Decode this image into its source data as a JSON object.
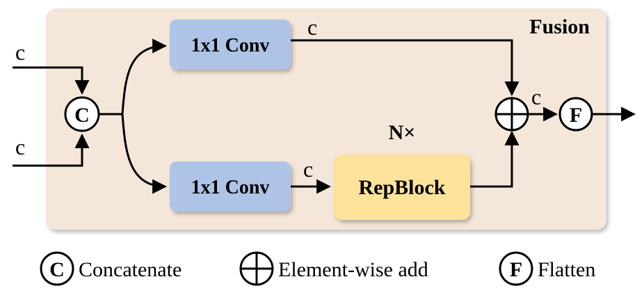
{
  "panel": {
    "title": "Fusion",
    "fill": "#f4e6d9"
  },
  "inputs": [
    {
      "label": "c"
    },
    {
      "label": "c"
    }
  ],
  "nodes": {
    "concat": {
      "symbol": "C"
    },
    "conv_top": {
      "label": "1x1 Conv",
      "fill": "#aec4e6"
    },
    "conv_bottom": {
      "label": "1x1 Conv",
      "fill": "#aec4e6"
    },
    "repblock": {
      "label": "RepBlock",
      "fill": "#fde39a",
      "repeat": "N×"
    },
    "add": {
      "symbol": "+"
    },
    "flatten": {
      "symbol": "F"
    }
  },
  "edge_labels": {
    "conv_top_out": "c",
    "conv_bottom_out": "c",
    "add_out": "c"
  },
  "legend": [
    {
      "symbol": "C",
      "label": "Concatenate"
    },
    {
      "symbol": "+",
      "label": "Element-wise add"
    },
    {
      "symbol": "F",
      "label": "Flatten"
    }
  ]
}
